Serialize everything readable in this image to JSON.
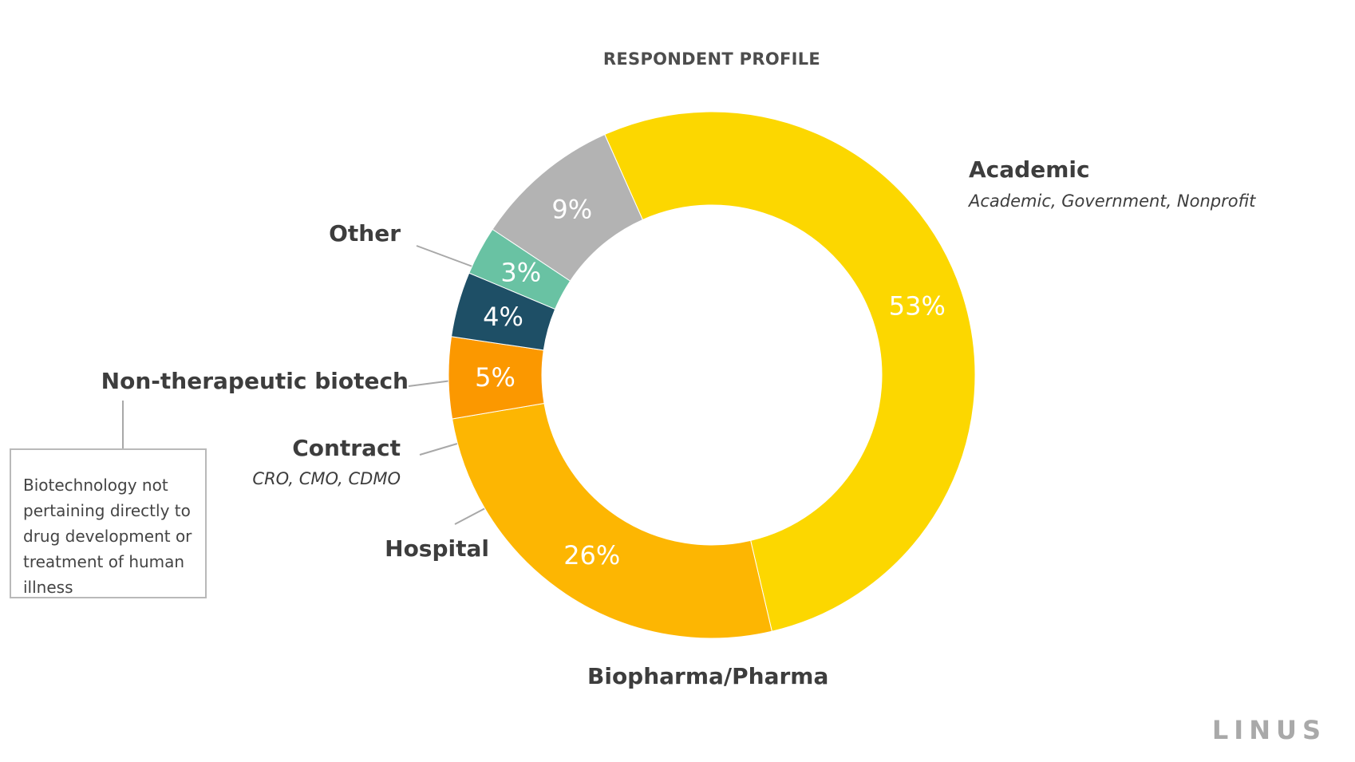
{
  "chart_data": {
    "type": "pie",
    "donut": true,
    "title": "RESPONDENT PROFILE",
    "slices": [
      {
        "name": "Academic",
        "value": 53,
        "label": "53%",
        "subtitle": "Academic, Government, Nonprofit",
        "color": "#FCD700"
      },
      {
        "name": "Biopharma/Pharma",
        "value": 26,
        "label": "26%",
        "subtitle": "",
        "color": "#FDB602"
      },
      {
        "name": "Hospital",
        "value": 5,
        "label": "5%",
        "subtitle": "",
        "color": "#FB9800"
      },
      {
        "name": "Contract",
        "value": 4,
        "label": "4%",
        "subtitle": "CRO, CMO, CDMO",
        "color": "#1E4F66"
      },
      {
        "name": "Non-therapeutic biotech",
        "value": 3,
        "label": "3%",
        "subtitle": "",
        "color": "#69C2A3"
      },
      {
        "name": "Other",
        "value": 9,
        "label": "9%",
        "subtitle": "",
        "color": "#B3B3B3"
      }
    ],
    "legend": "none"
  },
  "annotation": {
    "text": "Biotechnology not pertaining directly to drug development or treatment of human illness"
  },
  "brand": {
    "logo_text": "LINUS"
  }
}
